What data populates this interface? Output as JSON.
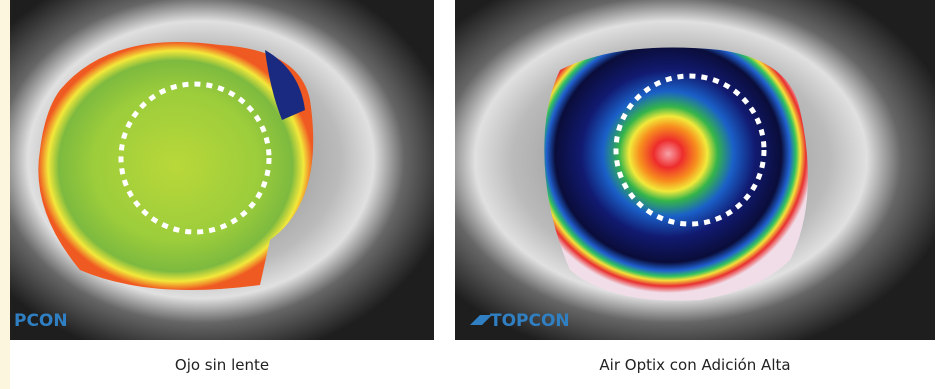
{
  "panels": [
    {
      "logo": "PCON",
      "caption": "Ojo sin lente"
    },
    {
      "logo": "TOPCON",
      "caption": "Air Optix con Adición Alta"
    }
  ]
}
